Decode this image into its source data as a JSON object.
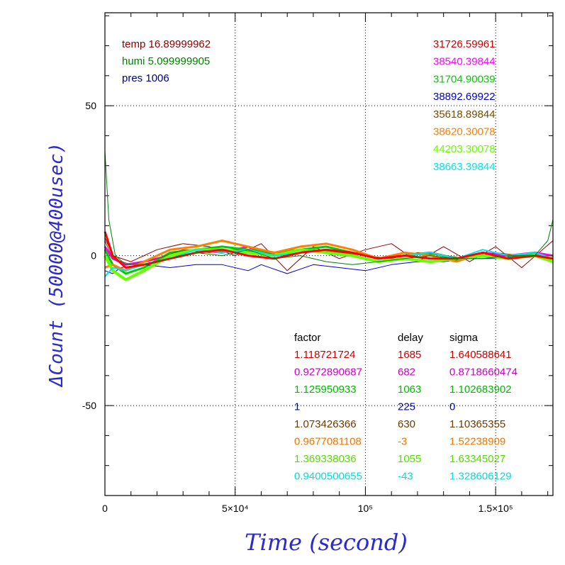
{
  "chart_data": {
    "type": "line",
    "xlabel": "Time (second)",
    "ylabel": "ΔCount (50000@400usec)",
    "xlim": [
      0,
      172000
    ],
    "ylim": [
      -80,
      81
    ],
    "grid": true,
    "x_ticks": [
      {
        "value": 0,
        "label": "0"
      },
      {
        "value": 50000,
        "label": "5×10⁴"
      },
      {
        "value": 100000,
        "label": "10⁵"
      },
      {
        "value": 150000,
        "label": "1.5×10⁵"
      }
    ],
    "y_ticks": [
      {
        "value": 50,
        "label": "50"
      },
      {
        "value": 0,
        "label": "0"
      },
      {
        "value": -50,
        "label": "-50"
      }
    ],
    "env_info": [
      {
        "text": "temp 16.89999962",
        "color": "#8b0000"
      },
      {
        "text": "humi 5.099999905",
        "color": "#008000"
      },
      {
        "text": "pres 1006",
        "color": "#000080"
      }
    ],
    "table_headers": [
      "factor",
      "delay",
      "sigma"
    ],
    "series": [
      {
        "color": "#8b0000",
        "width": 1,
        "mean": "31726.59961",
        "factor": "",
        "delay": "",
        "sigma": "",
        "x": [
          0,
          3000,
          10000,
          20000,
          30000,
          40000,
          50000,
          60000,
          70000,
          80000,
          90000,
          100000,
          110000,
          120000,
          130000,
          140000,
          150000,
          160000,
          172000
        ],
        "y": [
          6,
          0,
          -2,
          2,
          4,
          3,
          0,
          4,
          -5,
          3,
          -1,
          2,
          4,
          -2,
          3,
          -2,
          3,
          -4,
          5
        ]
      },
      {
        "color": "#ff00ff",
        "width": 3,
        "mean": "38540.39844",
        "factor": "0.9272890687",
        "delay": "682",
        "sigma": "0.8718660474",
        "x": [
          0,
          3000,
          8000,
          15000,
          25000,
          35000,
          45000,
          55000,
          65000,
          75000,
          85000,
          95000,
          105000,
          115000,
          125000,
          135000,
          145000,
          155000,
          165000,
          172000
        ],
        "y": [
          3,
          -1,
          -3,
          -2,
          0,
          2,
          1,
          3,
          0,
          2,
          1,
          1,
          -1,
          0,
          1,
          -1,
          1,
          0,
          1,
          0
        ]
      },
      {
        "color": "#00cc00",
        "width": 3,
        "mean": "31704.90039",
        "factor": "1.125950933",
        "delay": "1063",
        "sigma": "1.102683902",
        "x": [
          0,
          3000,
          8000,
          15000,
          25000,
          35000,
          45000,
          55000,
          65000,
          75000,
          85000,
          95000,
          105000,
          115000,
          125000,
          135000,
          145000,
          155000,
          165000,
          172000
        ],
        "y": [
          2,
          -3,
          -6,
          -4,
          1,
          2,
          3,
          2,
          1,
          2,
          3,
          1,
          -1,
          0,
          1,
          -1,
          0,
          -1,
          1,
          -2
        ]
      },
      {
        "color": "#0000cc",
        "width": 1,
        "mean": "38892.69922",
        "factor": "1",
        "delay": "225",
        "sigma": "0",
        "x": [
          0,
          3000,
          6000,
          15000,
          25000,
          35000,
          45000,
          55000,
          60000,
          70000,
          80000,
          90000,
          100000,
          110000,
          120000,
          130000,
          140000,
          150000,
          160000,
          172000
        ],
        "y": [
          -5,
          -6,
          -4,
          -3,
          -4,
          -3,
          -3,
          -5,
          -3,
          -6,
          -3,
          -4,
          -5,
          -3,
          -2,
          -2,
          -1,
          -1,
          0,
          0
        ]
      },
      {
        "color": "#7a4a00",
        "width": 1,
        "mean": "35618.89844",
        "factor": "1.073426366",
        "delay": "630",
        "sigma": "1.10365355",
        "x": [
          0,
          3000,
          10000,
          20000,
          30000,
          40000,
          50000,
          60000,
          70000,
          80000,
          90000,
          100000,
          110000,
          120000,
          130000,
          140000,
          150000,
          160000,
          172000
        ],
        "y": [
          5,
          -1,
          -3,
          -1,
          2,
          1,
          2,
          1,
          0,
          2,
          1,
          0,
          -1,
          1,
          0,
          -1,
          1,
          0,
          0
        ]
      },
      {
        "color": "#ff8000",
        "width": 3,
        "mean": "38620.30078",
        "factor": "0.9677081108",
        "delay": "-3",
        "sigma": "1.52238909",
        "x": [
          0,
          3000,
          8000,
          15000,
          25000,
          35000,
          45000,
          55000,
          65000,
          75000,
          85000,
          95000,
          105000,
          115000,
          125000,
          135000,
          145000,
          155000,
          165000,
          172000
        ],
        "y": [
          -4,
          -3,
          -5,
          -2,
          2,
          3,
          5,
          3,
          1,
          3,
          4,
          2,
          -1,
          1,
          0,
          -2,
          1,
          -1,
          0,
          -1
        ]
      },
      {
        "color": "#66ff00",
        "width": 4,
        "mean": "44203.30078",
        "factor": "1.369338036",
        "delay": "1055",
        "sigma": "1.63345027",
        "x": [
          0,
          3000,
          8000,
          15000,
          25000,
          35000,
          45000,
          55000,
          65000,
          75000,
          85000,
          95000,
          105000,
          115000,
          125000,
          135000,
          145000,
          155000,
          165000,
          172000
        ],
        "y": [
          0,
          -5,
          -8,
          -5,
          0,
          2,
          2,
          1,
          0,
          2,
          1,
          0,
          -2,
          -1,
          -2,
          -1,
          0,
          -1,
          0,
          -2
        ]
      },
      {
        "color": "#00e5ee",
        "width": 2,
        "mean": "38663.39844",
        "factor": "0.9400500655",
        "delay": "-43",
        "sigma": "1.328606129",
        "x": [
          0,
          3000,
          8000,
          15000,
          25000,
          35000,
          45000,
          55000,
          65000,
          75000,
          85000,
          95000,
          105000,
          115000,
          125000,
          135000,
          145000,
          155000,
          165000,
          172000
        ],
        "y": [
          -7,
          -4,
          -5,
          -3,
          -1,
          2,
          1,
          2,
          0,
          1,
          2,
          1,
          -1,
          0,
          1,
          -1,
          2,
          0,
          1,
          -1
        ]
      },
      {
        "color": "#ff0000",
        "width": 3,
        "mean": "31726.59961",
        "factor": "1.118721724",
        "delay": "1685",
        "sigma": "1.640588641",
        "x": [
          0,
          3000,
          8000,
          15000,
          25000,
          35000,
          45000,
          55000,
          65000,
          75000,
          85000,
          95000,
          105000,
          115000,
          125000,
          135000,
          145000,
          155000,
          165000,
          172000
        ],
        "y": [
          8,
          0,
          -4,
          -3,
          -1,
          1,
          2,
          0,
          -1,
          1,
          2,
          1,
          -1,
          0,
          -1,
          -1,
          1,
          -1,
          0,
          -1
        ]
      },
      {
        "color": "#008000",
        "width": 1,
        "mean": "",
        "factor": "",
        "delay": "",
        "sigma": "",
        "x": [
          0,
          1500,
          4000,
          8000,
          15000,
          25000,
          35000,
          45000,
          55000,
          65000,
          75000,
          85000,
          95000,
          105000,
          115000,
          125000,
          135000,
          145000,
          155000,
          165000,
          170000,
          172000
        ],
        "y": [
          35,
          12,
          0,
          -3,
          -3,
          -1,
          1,
          0,
          2,
          -1,
          0,
          -2,
          -3,
          -2,
          -1,
          0,
          -1,
          -1,
          0,
          0,
          5,
          12
        ]
      }
    ],
    "legend_order": [
      {
        "label": "31726.59961",
        "color": "#cc0000"
      },
      {
        "label": "38540.39844",
        "color": "#ff00ff"
      },
      {
        "label": "31704.90039",
        "color": "#00cc00"
      },
      {
        "label": "38892.69922",
        "color": "#0000cc"
      },
      {
        "label": "35618.89844",
        "color": "#7a4a00"
      },
      {
        "label": "38620.30078",
        "color": "#ff8000"
      },
      {
        "label": "44203.30078",
        "color": "#66ff00"
      },
      {
        "label": "38663.39844",
        "color": "#00e5ee"
      }
    ],
    "table_rows": [
      {
        "factor": "1.118721724",
        "delay": "1685",
        "sigma": "1.640588641",
        "color": "#cc0000"
      },
      {
        "factor": "0.9272890687",
        "delay": "682",
        "sigma": "0.8718660474",
        "color": "#cc00cc"
      },
      {
        "factor": "1.125950933",
        "delay": "1063",
        "sigma": "1.102683902",
        "color": "#00bb00"
      },
      {
        "factor": "1",
        "delay": "225",
        "sigma": "0",
        "color": "#0000cc"
      },
      {
        "factor": "1.073426366",
        "delay": "630",
        "sigma": "1.10365355",
        "color": "#6b3a00"
      },
      {
        "factor": "0.9677081108",
        "delay": "-3",
        "sigma": "1.52238909",
        "color": "#ee7700"
      },
      {
        "factor": "1.369338036",
        "delay": "1055",
        "sigma": "1.63345027",
        "color": "#55dd00"
      },
      {
        "factor": "0.9400500655",
        "delay": "-43",
        "sigma": "1.328606129",
        "color": "#00dddd"
      }
    ]
  }
}
